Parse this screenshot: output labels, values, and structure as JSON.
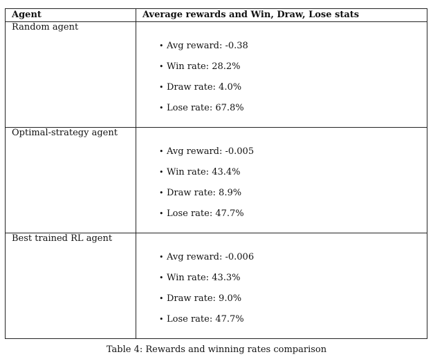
{
  "table": {
    "headers": [
      "Agent",
      "Average rewards and Win, Draw, Lose stats"
    ],
    "rows": [
      {
        "agent": "Random agent",
        "stats": [
          "Avg reward: -0.38",
          "Win rate: 28.2%",
          "Draw rate: 4.0%",
          "Lose rate: 67.8%"
        ]
      },
      {
        "agent": "Optimal-strategy agent",
        "stats": [
          "Avg reward: -0.005",
          "Win rate: 43.4%",
          "Draw rate: 8.9%",
          "Lose rate: 47.7%"
        ]
      },
      {
        "agent": "Best trained RL agent",
        "stats": [
          "Avg reward: -0.006",
          "Win rate: 43.3%",
          "Draw rate: 9.0%",
          "Lose rate: 47.7%"
        ]
      }
    ],
    "bullet": "•"
  },
  "caption": "Table 4: Rewards and winning rates comparison"
}
